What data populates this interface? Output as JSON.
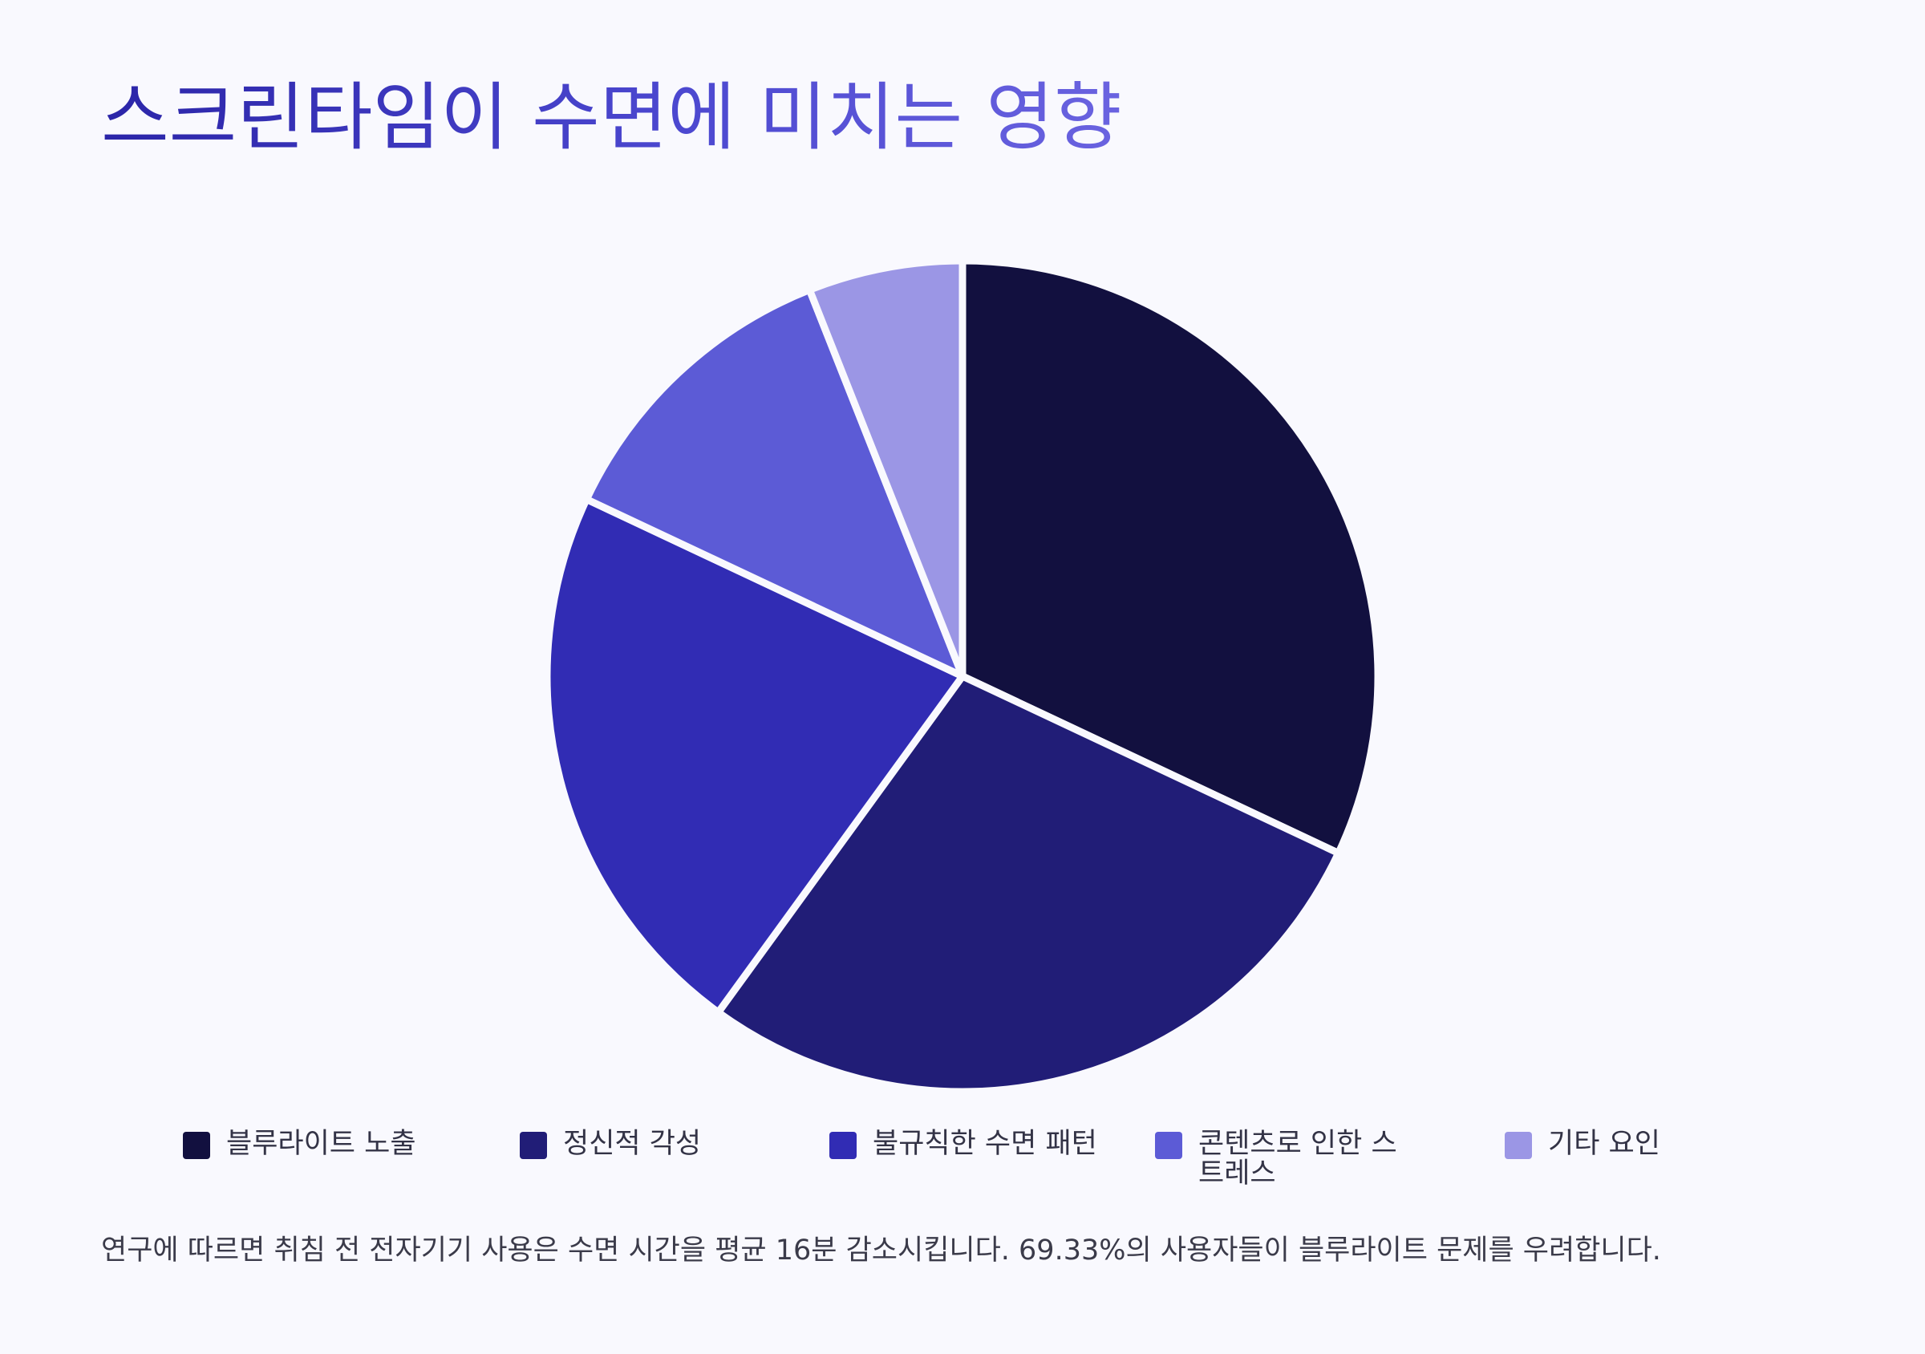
{
  "title": "스크린타임이 수면에 미치는 영향",
  "note": "연구에 따르면 취침 전 전자기기 사용은 수면 시간을 평균 16분 감소시킵니다. 69.33%의 사용자들이 블루라이트 문제를 우려합니다.",
  "chart_data": {
    "type": "pie",
    "title": "스크린타임이 수면에 미치는 영향",
    "categories": [
      "블루라이트 노출",
      "정신적 각성",
      "불규칙한 수면 패턴",
      "콘텐츠로 인한 스트레스",
      "기타 요인"
    ],
    "values": [
      32,
      28,
      22,
      12,
      6
    ],
    "colors": [
      "#12103f",
      "#211d77",
      "#312cb4",
      "#5c5bd6",
      "#9b96e5"
    ],
    "legend_position": "bottom",
    "start_angle": "12 o'clock, clockwise"
  },
  "legend": {
    "items": [
      {
        "label": "블루라이트 노출",
        "color": "#12103f"
      },
      {
        "label": "정신적 각성",
        "color": "#211d77"
      },
      {
        "label": "불규칙한 수면 패턴",
        "color": "#312cb4"
      },
      {
        "label": "콘텐츠로 인한 스트레스",
        "color": "#5c5bd6"
      },
      {
        "label": "기타 요인",
        "color": "#9b96e5"
      }
    ]
  }
}
